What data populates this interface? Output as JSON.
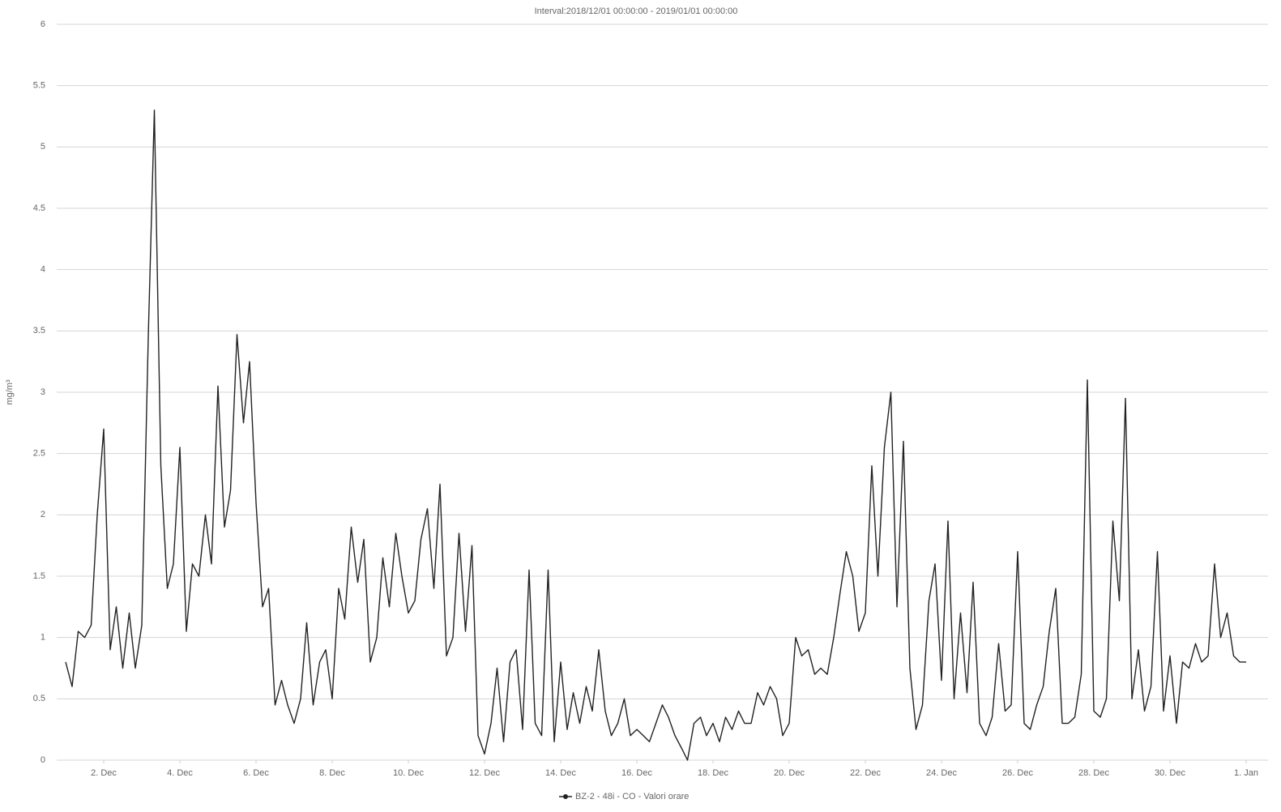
{
  "chart_data": {
    "type": "line",
    "title": "Interval:2018/12/01 00:00:00 - 2019/01/01 00:00:00",
    "y_label": "mg/m³",
    "x": [
      1,
      1.17,
      1.33,
      1.5,
      1.67,
      1.83,
      2,
      2.17,
      2.33,
      2.5,
      2.67,
      2.83,
      3,
      3.17,
      3.33,
      3.5,
      3.67,
      3.83,
      4,
      4.17,
      4.33,
      4.5,
      4.67,
      4.83,
      5,
      5.17,
      5.33,
      5.5,
      5.67,
      5.83,
      6,
      6.17,
      6.33,
      6.5,
      6.67,
      6.83,
      7,
      7.17,
      7.33,
      7.5,
      7.67,
      7.83,
      8,
      8.17,
      8.33,
      8.5,
      8.67,
      8.83,
      9,
      9.17,
      9.33,
      9.5,
      9.67,
      9.83,
      10,
      10.17,
      10.33,
      10.5,
      10.67,
      10.83,
      11,
      11.17,
      11.33,
      11.5,
      11.67,
      11.83,
      12,
      12.17,
      12.33,
      12.5,
      12.67,
      12.83,
      13,
      13.17,
      13.33,
      13.5,
      13.67,
      13.83,
      14,
      14.17,
      14.33,
      14.5,
      14.67,
      14.83,
      15,
      15.17,
      15.33,
      15.5,
      15.67,
      15.83,
      16,
      16.17,
      16.33,
      16.5,
      16.67,
      16.83,
      17,
      17.17,
      17.33,
      17.5,
      17.67,
      17.83,
      18,
      18.17,
      18.33,
      18.5,
      18.67,
      18.83,
      19,
      19.17,
      19.33,
      19.5,
      19.67,
      19.83,
      20,
      20.17,
      20.33,
      20.5,
      20.67,
      20.83,
      21,
      21.17,
      21.33,
      21.5,
      21.67,
      21.83,
      22,
      22.17,
      22.33,
      22.5,
      22.67,
      22.83,
      23,
      23.17,
      23.33,
      23.5,
      23.67,
      23.83,
      24,
      24.17,
      24.33,
      24.5,
      24.67,
      24.83,
      25,
      25.17,
      25.33,
      25.5,
      25.67,
      25.83,
      26,
      26.17,
      26.33,
      26.5,
      26.67,
      26.83,
      27,
      27.17,
      27.33,
      27.5,
      27.67,
      27.83,
      28,
      28.17,
      28.33,
      28.5,
      28.67,
      28.83,
      29,
      29.17,
      29.33,
      29.5,
      29.67,
      29.83,
      30,
      30.17,
      30.33,
      30.5,
      30.67,
      30.83,
      31,
      31.17,
      31.33,
      31.5,
      31.67,
      31.83,
      32
    ],
    "series": [
      {
        "name": "BZ-2 - 48i - CO - Valori orare",
        "color": "#222222",
        "values": [
          0.8,
          0.6,
          1.05,
          1.0,
          1.1,
          2.0,
          2.7,
          0.9,
          1.25,
          0.75,
          1.2,
          0.75,
          1.1,
          3.45,
          5.3,
          2.4,
          1.4,
          1.6,
          2.55,
          1.05,
          1.6,
          1.5,
          2.0,
          1.6,
          3.05,
          1.9,
          2.2,
          3.47,
          2.75,
          3.25,
          2.1,
          1.25,
          1.4,
          0.45,
          0.65,
          0.45,
          0.3,
          0.5,
          1.12,
          0.45,
          0.8,
          0.9,
          0.5,
          1.4,
          1.15,
          1.9,
          1.45,
          1.8,
          0.8,
          1.0,
          1.65,
          1.25,
          1.85,
          1.5,
          1.2,
          1.3,
          1.8,
          2.05,
          1.4,
          2.25,
          0.85,
          1.0,
          1.85,
          1.05,
          1.75,
          0.2,
          0.05,
          0.3,
          0.75,
          0.15,
          0.8,
          0.9,
          0.25,
          1.55,
          0.3,
          0.2,
          1.55,
          0.15,
          0.8,
          0.25,
          0.55,
          0.3,
          0.6,
          0.4,
          0.9,
          0.4,
          0.2,
          0.3,
          0.5,
          0.2,
          0.25,
          0.2,
          0.15,
          0.3,
          0.45,
          0.35,
          0.2,
          0.1,
          0.0,
          0.3,
          0.35,
          0.2,
          0.3,
          0.15,
          0.35,
          0.25,
          0.4,
          0.3,
          0.3,
          0.55,
          0.45,
          0.6,
          0.5,
          0.2,
          0.3,
          1.0,
          0.85,
          0.9,
          0.7,
          0.75,
          0.7,
          1.0,
          1.35,
          1.7,
          1.5,
          1.05,
          1.2,
          2.4,
          1.5,
          2.55,
          3.0,
          1.25,
          2.6,
          0.75,
          0.25,
          0.45,
          1.3,
          1.6,
          0.65,
          1.95,
          0.5,
          1.2,
          0.55,
          1.45,
          0.3,
          0.2,
          0.35,
          0.95,
          0.4,
          0.45,
          1.7,
          0.3,
          0.25,
          0.45,
          0.6,
          1.05,
          1.4,
          0.3,
          0.3,
          0.35,
          0.7,
          3.1,
          0.4,
          0.35,
          0.5,
          1.95,
          1.3,
          2.95,
          0.5,
          0.9,
          0.4,
          0.6,
          1.7,
          0.4,
          0.85,
          0.3,
          0.8,
          0.75,
          0.95,
          0.8,
          0.85,
          1.6,
          1.0,
          1.2,
          0.85,
          0.8,
          0.8
        ]
      }
    ],
    "xlim": [
      1,
      32
    ],
    "xticks": [
      {
        "value": 2,
        "label": "2. Dec"
      },
      {
        "value": 4,
        "label": "4. Dec"
      },
      {
        "value": 6,
        "label": "6. Dec"
      },
      {
        "value": 8,
        "label": "8. Dec"
      },
      {
        "value": 10,
        "label": "10. Dec"
      },
      {
        "value": 12,
        "label": "12. Dec"
      },
      {
        "value": 14,
        "label": "14. Dec"
      },
      {
        "value": 16,
        "label": "16. Dec"
      },
      {
        "value": 18,
        "label": "18. Dec"
      },
      {
        "value": 20,
        "label": "20. Dec"
      },
      {
        "value": 22,
        "label": "22. Dec"
      },
      {
        "value": 24,
        "label": "24. Dec"
      },
      {
        "value": 26,
        "label": "26. Dec"
      },
      {
        "value": 28,
        "label": "28. Dec"
      },
      {
        "value": 30,
        "label": "30. Dec"
      },
      {
        "value": 32,
        "label": "1. Jan"
      }
    ],
    "ylim": [
      0,
      6
    ],
    "yticks": [
      0,
      0.5,
      1,
      1.5,
      2,
      2.5,
      3,
      3.5,
      4,
      4.5,
      5,
      5.5,
      6
    ],
    "grid": true
  }
}
